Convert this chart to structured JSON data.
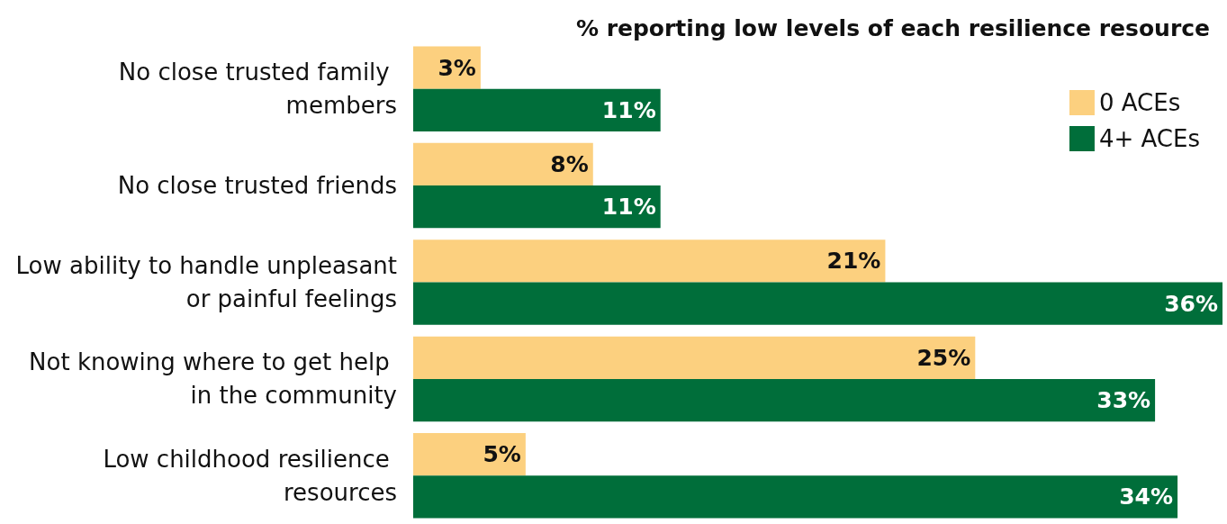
{
  "chart_data": {
    "type": "bar",
    "orientation": "horizontal",
    "title": "% reporting low levels of each resilience resource",
    "categories": [
      "No close trusted family members",
      "No close trusted friends",
      "Low ability to handle unpleasant or painful feelings",
      "Not knowing where to get help in the community",
      "Low childhood resilience resources"
    ],
    "series": [
      {
        "name": "0 ACEs",
        "color": "#fcd07f",
        "values": [
          3,
          8,
          21,
          25,
          5
        ],
        "value_labels": [
          "3%",
          "8%",
          "21%",
          "25%",
          "5%"
        ]
      },
      {
        "name": "4+ ACEs",
        "color": "#006e3a",
        "values": [
          11,
          11,
          36,
          33,
          34
        ],
        "value_labels": [
          "11%",
          "11%",
          "36%",
          "33%",
          "34%"
        ]
      }
    ],
    "xlim": [
      0,
      36
    ],
    "tick_labels": "y",
    "grid": false,
    "legend": "top right"
  }
}
